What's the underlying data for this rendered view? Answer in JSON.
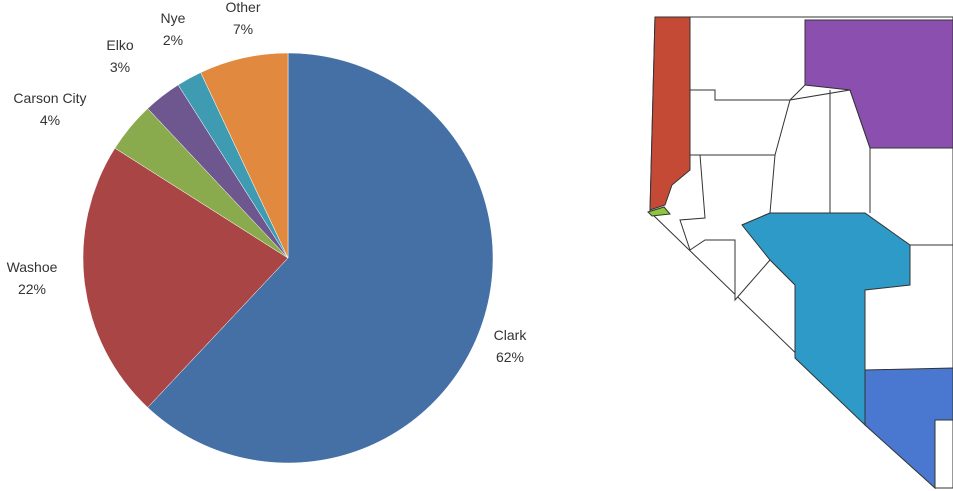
{
  "chart_data": {
    "type": "pie",
    "categories": [
      "Clark",
      "Washoe",
      "Carson City",
      "Elko",
      "Nye",
      "Other"
    ],
    "values": [
      62,
      22,
      4,
      3,
      2,
      7
    ],
    "value_labels": [
      "62%",
      "22%",
      "4%",
      "3%",
      "2%",
      "7%"
    ],
    "colors": [
      "#4570a5",
      "#a94544",
      "#8aab4d",
      "#6e568f",
      "#3f9bb1",
      "#e0893f"
    ]
  }
}
